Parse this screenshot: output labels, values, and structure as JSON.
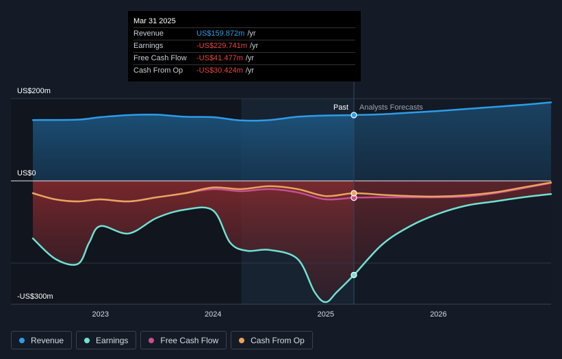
{
  "tooltip": {
    "date": "Mar 31 2025",
    "rows": [
      {
        "label": "Revenue",
        "value": "US$159.872m",
        "unit": "/yr",
        "color": "#2d9de8"
      },
      {
        "label": "Earnings",
        "value": "-US$229.741m",
        "unit": "/yr",
        "color": "#e8463b"
      },
      {
        "label": "Free Cash Flow",
        "value": "-US$41.477m",
        "unit": "/yr",
        "color": "#e8463b"
      },
      {
        "label": "Cash From Op",
        "value": "-US$30.424m",
        "unit": "/yr",
        "color": "#e8463b"
      }
    ]
  },
  "legend": [
    {
      "label": "Revenue",
      "color": "#2d9de8"
    },
    {
      "label": "Earnings",
      "color": "#6fe3d4"
    },
    {
      "label": "Free Cash Flow",
      "color": "#c84f91"
    },
    {
      "label": "Cash From Op",
      "color": "#e9a45c"
    }
  ],
  "chart_data": {
    "type": "line",
    "y_tick_labels": [
      "US$200m",
      "US$0",
      "-US$300m"
    ],
    "y_ticks": [
      200,
      0,
      -300
    ],
    "ylim": [
      -300,
      200
    ],
    "x_tick_labels": [
      "2023",
      "2024",
      "2025",
      "2026"
    ],
    "x_ticks": [
      2023.0,
      2024.0,
      2025.0,
      2026.0
    ],
    "xlim": [
      2022.2,
      2027.0
    ],
    "past_label": "Past",
    "forecast_label": "Analysts Forecasts",
    "past_end": 2025.25,
    "highlight_start": 2024.25,
    "colors": {
      "revenue": "#2d9de8",
      "earnings": "#6fe3d4",
      "fcf": "#c84f91",
      "cfo": "#e9a45c"
    },
    "series": [
      {
        "name": "Revenue",
        "key": "revenue",
        "points": [
          [
            2022.4,
            148
          ],
          [
            2022.8,
            149
          ],
          [
            2023.0,
            155
          ],
          [
            2023.25,
            160
          ],
          [
            2023.5,
            161
          ],
          [
            2023.75,
            156
          ],
          [
            2024.0,
            155
          ],
          [
            2024.25,
            147
          ],
          [
            2024.5,
            148
          ],
          [
            2024.75,
            156
          ],
          [
            2025.0,
            159
          ],
          [
            2025.25,
            160
          ],
          [
            2025.5,
            162
          ],
          [
            2025.75,
            166
          ],
          [
            2026.0,
            170
          ],
          [
            2026.25,
            175
          ],
          [
            2026.5,
            180
          ],
          [
            2026.75,
            185
          ],
          [
            2027.0,
            191
          ]
        ]
      },
      {
        "name": "Earnings",
        "key": "earnings",
        "points": [
          [
            2022.4,
            -140
          ],
          [
            2022.6,
            -190
          ],
          [
            2022.8,
            -202
          ],
          [
            2022.9,
            -150
          ],
          [
            2023.0,
            -110
          ],
          [
            2023.25,
            -128
          ],
          [
            2023.5,
            -90
          ],
          [
            2023.75,
            -70
          ],
          [
            2024.0,
            -72
          ],
          [
            2024.15,
            -150
          ],
          [
            2024.3,
            -170
          ],
          [
            2024.5,
            -168
          ],
          [
            2024.75,
            -190
          ],
          [
            2024.9,
            -270
          ],
          [
            2025.0,
            -295
          ],
          [
            2025.1,
            -270
          ],
          [
            2025.25,
            -229
          ],
          [
            2025.5,
            -155
          ],
          [
            2025.75,
            -110
          ],
          [
            2026.0,
            -80
          ],
          [
            2026.25,
            -60
          ],
          [
            2026.5,
            -50
          ],
          [
            2026.75,
            -40
          ],
          [
            2027.0,
            -32
          ]
        ]
      },
      {
        "name": "Free Cash Flow",
        "key": "fcf",
        "points": [
          [
            2022.4,
            -30
          ],
          [
            2022.6,
            -45
          ],
          [
            2022.8,
            -50
          ],
          [
            2023.0,
            -45
          ],
          [
            2023.25,
            -50
          ],
          [
            2023.5,
            -40
          ],
          [
            2023.75,
            -30
          ],
          [
            2024.0,
            -20
          ],
          [
            2024.25,
            -25
          ],
          [
            2024.5,
            -20
          ],
          [
            2024.75,
            -28
          ],
          [
            2025.0,
            -45
          ],
          [
            2025.25,
            -41
          ],
          [
            2025.5,
            -40
          ],
          [
            2025.75,
            -40
          ],
          [
            2026.0,
            -40
          ],
          [
            2026.25,
            -38
          ],
          [
            2026.5,
            -30
          ],
          [
            2026.75,
            -18
          ],
          [
            2027.0,
            -5
          ]
        ]
      },
      {
        "name": "Cash From Op",
        "key": "cfo",
        "points": [
          [
            2022.4,
            -30
          ],
          [
            2022.6,
            -45
          ],
          [
            2022.8,
            -50
          ],
          [
            2023.0,
            -45
          ],
          [
            2023.25,
            -50
          ],
          [
            2023.5,
            -40
          ],
          [
            2023.75,
            -30
          ],
          [
            2024.0,
            -16
          ],
          [
            2024.25,
            -20
          ],
          [
            2024.5,
            -13
          ],
          [
            2024.75,
            -20
          ],
          [
            2025.0,
            -37
          ],
          [
            2025.25,
            -30
          ],
          [
            2025.5,
            -34
          ],
          [
            2025.75,
            -37
          ],
          [
            2026.0,
            -38
          ],
          [
            2026.25,
            -35
          ],
          [
            2026.5,
            -28
          ],
          [
            2026.75,
            -16
          ],
          [
            2027.0,
            -4
          ]
        ]
      }
    ],
    "markers": [
      {
        "key": "revenue",
        "x": 2025.25,
        "y": 160
      },
      {
        "key": "earnings",
        "x": 2025.25,
        "y": -229
      },
      {
        "key": "fcf",
        "x": 2025.25,
        "y": -41
      },
      {
        "key": "cfo",
        "x": 2025.25,
        "y": -30
      }
    ]
  }
}
